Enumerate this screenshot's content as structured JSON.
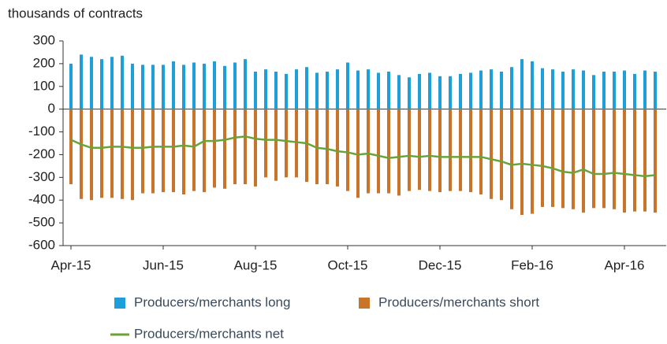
{
  "chart_data": {
    "type": "bar",
    "y_label": "thousands of contracts",
    "categories": [
      "Apr-15",
      null,
      null,
      null,
      null,
      null,
      null,
      null,
      null,
      "Jun-15",
      null,
      null,
      null,
      null,
      null,
      null,
      null,
      null,
      "Aug-15",
      null,
      null,
      null,
      null,
      null,
      null,
      null,
      null,
      "Oct-15",
      null,
      null,
      null,
      null,
      null,
      null,
      null,
      null,
      "Dec-15",
      null,
      null,
      null,
      null,
      null,
      null,
      null,
      null,
      "Feb-16",
      null,
      null,
      null,
      null,
      null,
      null,
      null,
      null,
      "Apr-16",
      null,
      null,
      null
    ],
    "series": [
      {
        "name": "Producers/merchants long",
        "color": "#1f9fd9",
        "values": [
          200,
          240,
          230,
          220,
          230,
          235,
          200,
          195,
          195,
          195,
          210,
          195,
          205,
          200,
          210,
          190,
          205,
          220,
          165,
          175,
          165,
          155,
          175,
          185,
          160,
          165,
          175,
          205,
          170,
          175,
          160,
          165,
          150,
          140,
          155,
          160,
          145,
          145,
          155,
          160,
          170,
          175,
          165,
          185,
          220,
          210,
          180,
          175,
          165,
          175,
          170,
          150,
          165,
          165,
          170,
          155,
          170,
          165
        ]
      },
      {
        "name": "Producers/merchants short",
        "color": "#c8742a",
        "values": [
          -330,
          -395,
          -400,
          -390,
          -390,
          -395,
          -400,
          -370,
          -370,
          -365,
          -365,
          -375,
          -360,
          -365,
          -345,
          -350,
          -330,
          -330,
          -340,
          -300,
          -315,
          -300,
          -300,
          -320,
          -330,
          -330,
          -340,
          -360,
          -390,
          -370,
          -370,
          -370,
          -380,
          -360,
          -355,
          -360,
          -365,
          -360,
          -360,
          -365,
          -375,
          -395,
          -400,
          -440,
          -465,
          -460,
          -430,
          -430,
          -435,
          -440,
          -455,
          -435,
          -435,
          -440,
          -455,
          -450,
          -450,
          -455
        ]
      },
      {
        "name": "Producers/merchants net",
        "color": "#6aa33a",
        "line": true,
        "values": [
          -135,
          -155,
          -170,
          -170,
          -165,
          -165,
          -170,
          -170,
          -165,
          -165,
          -165,
          -160,
          -165,
          -140,
          -140,
          -135,
          -125,
          -120,
          -130,
          -135,
          -135,
          -140,
          -145,
          -150,
          -170,
          -175,
          -185,
          -190,
          -200,
          -195,
          -205,
          -215,
          -210,
          -205,
          -210,
          -205,
          -210,
          -210,
          -210,
          -210,
          -210,
          -220,
          -230,
          -245,
          -240,
          -245,
          -250,
          -260,
          -275,
          -280,
          -265,
          -285,
          -285,
          -280,
          -285,
          -290,
          -295,
          -290
        ]
      }
    ],
    "ylim": [
      -600,
      300
    ],
    "yticks": [
      -600,
      -500,
      -400,
      -300,
      -200,
      -100,
      0,
      100,
      200,
      300
    ],
    "grid": false
  }
}
